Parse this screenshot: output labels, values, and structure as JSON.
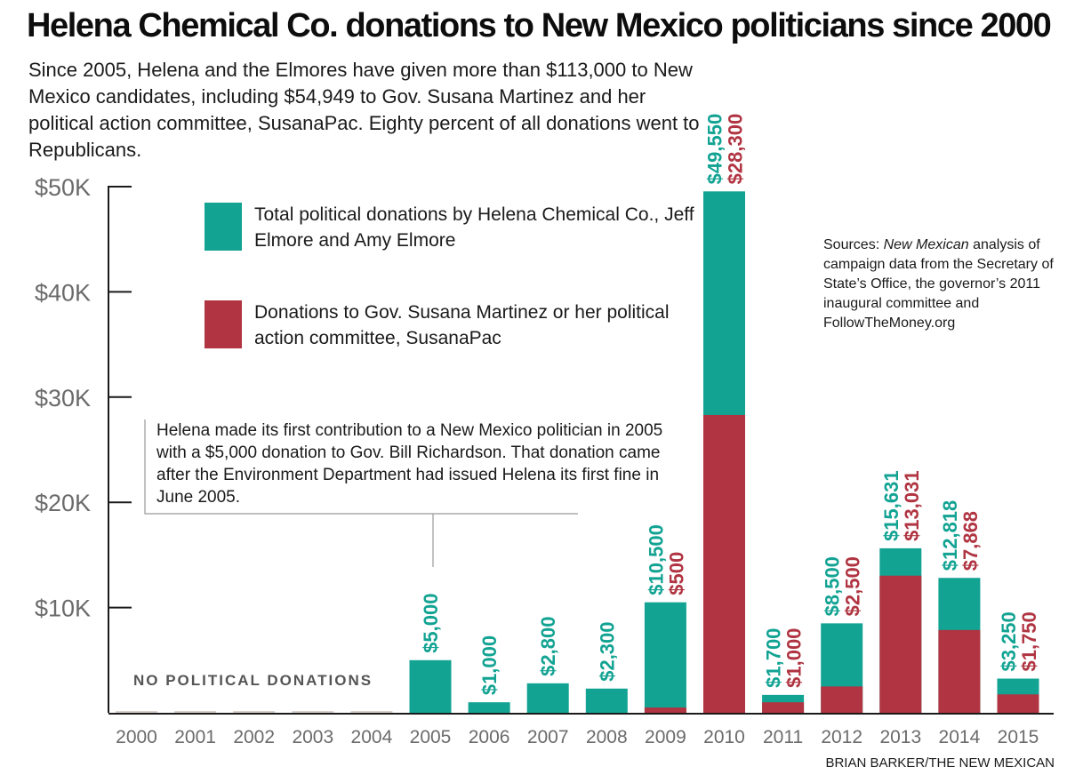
{
  "title": "Helena Chemical Co. donations to New Mexico politicians since 2000",
  "subtitle": "Since 2005, Helena and the Elmores have given more than $113,000 to New Mexico candidates, including $54,949 to Gov. Susana Martinez and her political action committee, SusanaPac. Eighty percent of all donations went to Republicans.",
  "legend": {
    "total": "Total political donations by Helena Chemical Co., Jeff Elmore and Amy Elmore",
    "martinez": "Donations to Gov. Susana Martinez or her political action committee, SusanaPac"
  },
  "sources": {
    "prefix": "Sources: ",
    "publication": "New Mexican",
    "rest": " analysis of campaign data from the Secretary of State’s Office, the governor’s 2011 inaugural committee and FollowTheMoney.org"
  },
  "annotation": "Helena made its first contribution to a New Mexico politician in 2005 with a $5,000 donation to Gov. Bill Richardson. That donation came after the Environment Department had issued Helena its first fine in June 2005.",
  "no_donations": "NO POLITICAL DONATIONS",
  "credit": "BRIAN BARKER/THE NEW MEXICAN",
  "colors": {
    "total": "#12a393",
    "martinez": "#b03441",
    "axis": "#1a1a1a",
    "tick_label": "#6b6b6b"
  },
  "chart_data": {
    "type": "bar",
    "title": "Helena Chemical Co. donations to New Mexico politicians since 2000",
    "xlabel": "",
    "ylabel": "",
    "ylim": [
      0,
      50000
    ],
    "y_ticks": [
      10000,
      20000,
      30000,
      40000,
      50000
    ],
    "y_tick_labels": [
      "$10K",
      "$20K",
      "$30K",
      "$40K",
      "$50K"
    ],
    "categories": [
      "2000",
      "2001",
      "2002",
      "2003",
      "2004",
      "2005",
      "2006",
      "2007",
      "2008",
      "2009",
      "2010",
      "2011",
      "2012",
      "2013",
      "2014",
      "2015"
    ],
    "series": [
      {
        "name": "Total political donations by Helena Chemical Co., Jeff Elmore and Amy Elmore",
        "values": [
          0,
          0,
          0,
          0,
          0,
          5000,
          1000,
          2800,
          2300,
          10500,
          49550,
          1700,
          8500,
          15631,
          12818,
          3250
        ],
        "labels": [
          "",
          "",
          "",
          "",
          "",
          "$5,000",
          "$1,000",
          "$2,800",
          "$2,300",
          "$10,500",
          "$49,550",
          "$1,700",
          "$8,500",
          "$15,631",
          "$12,818",
          "$3,250"
        ]
      },
      {
        "name": "Donations to Gov. Susana Martinez or her political action committee, SusanaPac",
        "values": [
          0,
          0,
          0,
          0,
          0,
          0,
          0,
          0,
          0,
          500,
          28300,
          1000,
          2500,
          13031,
          7868,
          1750
        ],
        "labels": [
          "",
          "",
          "",
          "",
          "",
          "",
          "",
          "",
          "",
          "$500",
          "$28,300",
          "$1,000",
          "$2,500",
          "$13,031",
          "$7,868",
          "$1,750"
        ]
      }
    ],
    "grid": false,
    "legend_position": "top-left"
  }
}
